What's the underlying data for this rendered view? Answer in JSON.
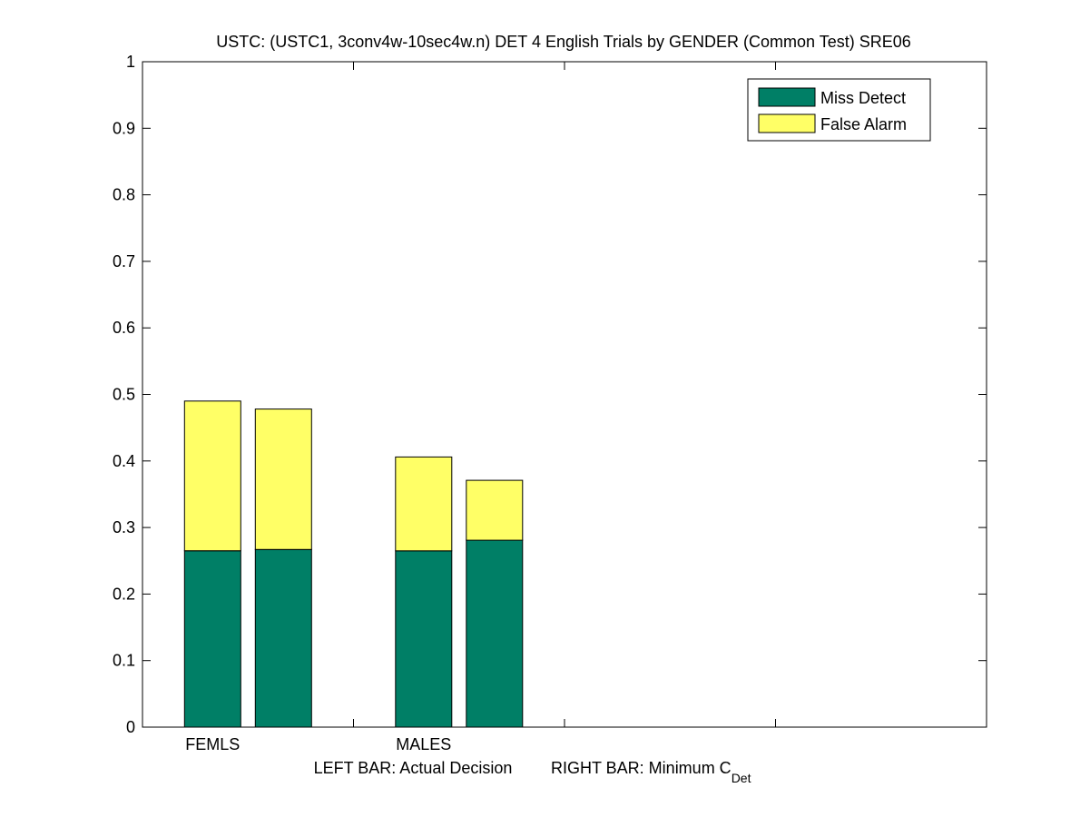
{
  "chart_data": {
    "type": "bar",
    "stacked": true,
    "title": "USTC: (USTC1, 3conv4w-10sec4w.n) DET 4 English Trials by GENDER (Common Test) SRE06",
    "categories": [
      "FEMLS",
      "MALES"
    ],
    "bars_per_category": [
      "Actual Decision",
      "Minimum C_Det"
    ],
    "series": [
      {
        "name": "Miss Detect",
        "color": "#007f66",
        "values": [
          [
            0.265,
            0.267
          ],
          [
            0.265,
            0.281
          ]
        ]
      },
      {
        "name": "False Alarm",
        "color": "#ffff66",
        "values": [
          [
            0.225,
            0.211
          ],
          [
            0.141,
            0.09
          ]
        ]
      }
    ],
    "ylim": [
      0,
      1
    ],
    "yticks": [
      "0",
      "0.1",
      "0.2",
      "0.3",
      "0.4",
      "0.5",
      "0.6",
      "0.7",
      "0.8",
      "0.9",
      "1"
    ],
    "xlabel_left": "LEFT BAR: Actual Decision",
    "xlabel_right_main": "RIGHT BAR: Minimum C",
    "xlabel_right_sub": "Det",
    "legend_position": "top-right",
    "grid": false
  }
}
